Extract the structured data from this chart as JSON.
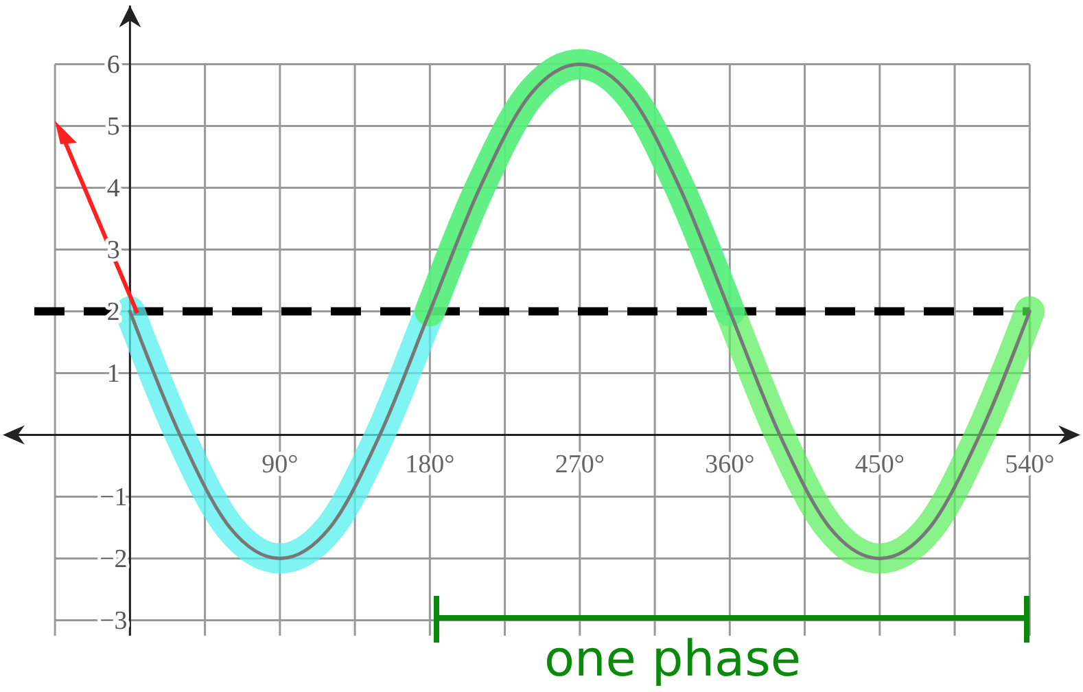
{
  "chart_data": {
    "type": "line",
    "xlim": [
      -78,
      572
    ],
    "ylim": [
      -3.25,
      6.95
    ],
    "xticks": [
      {
        "value": -45,
        "label": null
      },
      {
        "value": 0,
        "label": null
      },
      {
        "value": 45,
        "label": null
      },
      {
        "value": 90,
        "label": "90°"
      },
      {
        "value": 135,
        "label": null
      },
      {
        "value": 180,
        "label": "180°"
      },
      {
        "value": 225,
        "label": null
      },
      {
        "value": 270,
        "label": "270°"
      },
      {
        "value": 315,
        "label": null
      },
      {
        "value": 360,
        "label": "360°"
      },
      {
        "value": 405,
        "label": null
      },
      {
        "value": 450,
        "label": "450°"
      },
      {
        "value": 495,
        "label": null
      },
      {
        "value": 540,
        "label": "540°"
      }
    ],
    "yticks": [
      {
        "value": -3,
        "label": "−3"
      },
      {
        "value": -2,
        "label": "−2"
      },
      {
        "value": -1,
        "label": "−1"
      },
      {
        "value": 0,
        "label": null
      },
      1,
      2,
      3,
      4,
      5,
      6
    ],
    "grid": true,
    "marker": "none",
    "line_style": "solid",
    "series": [
      {
        "color": "#55f0ee",
        "x": [
          0,
          30,
          60,
          90,
          120,
          150,
          180,
          210,
          240,
          270,
          300,
          330,
          360
        ],
        "values": [
          2,
          0,
          -1.5,
          -2,
          -1.5,
          0,
          2,
          4,
          5.5,
          6,
          5.5,
          4,
          2
        ]
      },
      {
        "color": "#55ee55",
        "x": [
          180,
          210,
          240,
          270,
          300,
          330,
          360,
          390,
          420,
          450,
          480,
          510,
          540
        ],
        "values": [
          2,
          4,
          5.5,
          6,
          5.5,
          4,
          2,
          0,
          -1.5,
          -2,
          -1.5,
          0,
          2
        ]
      },
      {
        "color": "#777777",
        "x": [
          0,
          30,
          60,
          90,
          120,
          150,
          180,
          210,
          240,
          270,
          300,
          330,
          360,
          390,
          420,
          450,
          480,
          510,
          540
        ],
        "values": [
          2,
          0,
          -1.5,
          -2,
          -1.5,
          0,
          2,
          4,
          5.5,
          6,
          5.5,
          4,
          2,
          0,
          -1.5,
          -2,
          -1.5,
          0,
          2
        ]
      }
    ],
    "ref_lines": [
      {
        "axis": "y",
        "value": 2,
        "color": "#000000",
        "line_style": "dashed"
      }
    ],
    "annotations": [
      "one phase"
    ]
  }
}
